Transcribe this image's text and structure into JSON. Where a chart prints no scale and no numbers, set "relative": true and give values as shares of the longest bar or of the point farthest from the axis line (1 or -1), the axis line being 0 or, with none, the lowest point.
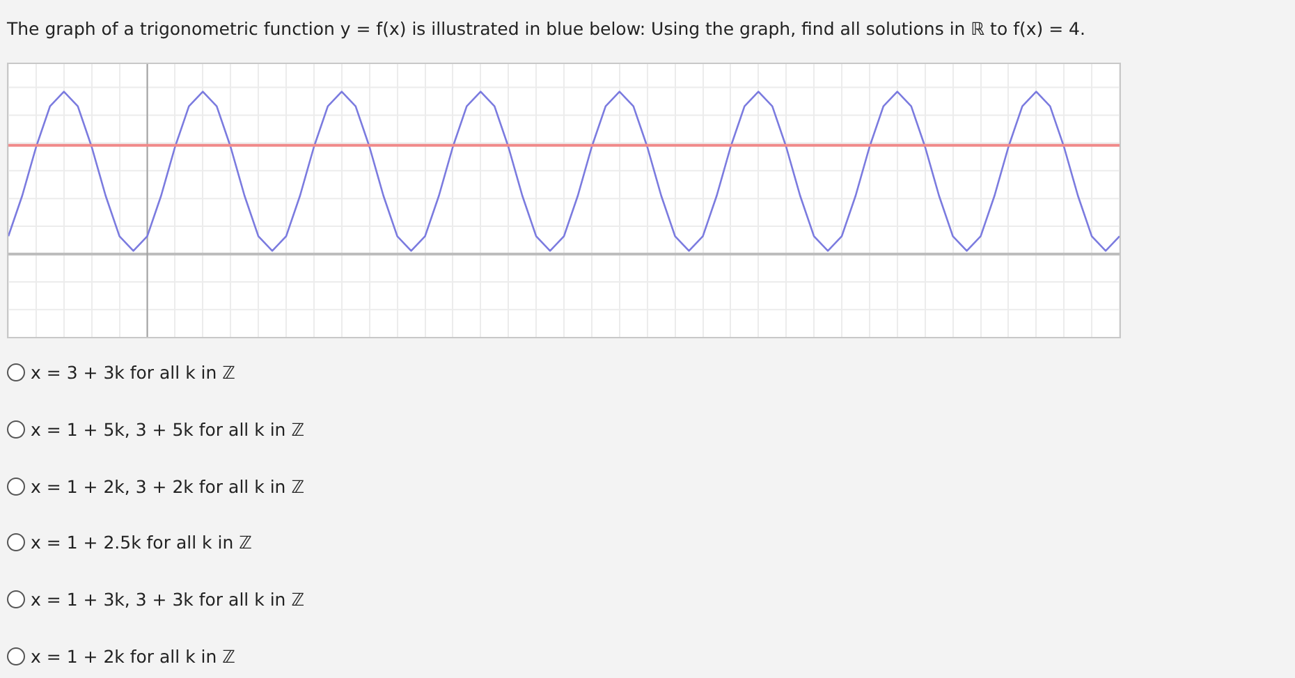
{
  "chart_data": {
    "type": "line",
    "title": "The graph of a trigonometric function y = f(x) is illustrated in blue below: Using the graph, find all solutions in ℝ to f(x) = 4.",
    "categories": [
      null,
      null,
      null,
      null,
      null,
      null,
      null,
      null,
      null,
      null,
      null,
      null,
      null,
      null,
      null,
      null,
      null,
      null,
      null,
      null,
      null,
      null,
      null,
      null,
      null,
      null,
      null,
      null,
      null,
      null,
      null,
      null,
      null,
      null,
      null,
      null,
      null,
      null,
      null,
      null,
      null,
      null,
      null,
      null,
      null,
      null,
      null,
      null,
      null,
      null,
      null,
      null,
      null,
      null,
      null,
      null,
      null,
      null,
      null,
      null,
      null,
      null,
      null,
      null,
      null,
      null,
      null,
      null,
      null,
      null,
      null,
      null,
      null,
      null,
      null,
      null,
      null,
      null,
      null,
      null,
      null
    ],
    "values": [
      0.11,
      0.36,
      0.66,
      0.91,
      1,
      0.91,
      0.66,
      0.36,
      0.11,
      0.02,
      0.11,
      0.36,
      0.66,
      0.91,
      1,
      0.91,
      0.66,
      0.36,
      0.11,
      0.02,
      0.11,
      0.36,
      0.66,
      0.91,
      1,
      0.91,
      0.66,
      0.36,
      0.11,
      0.02,
      0.11,
      0.36,
      0.66,
      0.91,
      1,
      0.91,
      0.66,
      0.36,
      0.11,
      0.02,
      0.11,
      0.36,
      0.66,
      0.91,
      1,
      0.91,
      0.66,
      0.36,
      0.11,
      0.02,
      0.11,
      0.36,
      0.66,
      0.91,
      1,
      0.91,
      0.66,
      0.36,
      0.11,
      0.02,
      0.11,
      0.36,
      0.66,
      0.91,
      1,
      0.91,
      0.66,
      0.36,
      0.11,
      0.02,
      0.11,
      0.36,
      0.66,
      0.91,
      1,
      0.91,
      0.66,
      0.36,
      0.11,
      0.02,
      0.11
    ],
    "color": "#7b7bdf",
    "relative": true,
    "grid": true,
    "marker": "none",
    "ref_lines": [
      {
        "axis": "y",
        "value": 0.67,
        "color": "#f08a8a"
      }
    ],
    "annotations": [
      "x = 3 + 3k for all k in ℤ",
      "x = 1 + 5k, 3 + 5k for all k in ℤ",
      "x = 1 + 2k, 3 + 2k for all k in ℤ",
      "x = 1 + 2.5k for all k in ℤ",
      "x = 1 + 3k, 3 + 3k for all k in ℤ",
      "x = 1 + 2k for all k in ℤ"
    ]
  }
}
